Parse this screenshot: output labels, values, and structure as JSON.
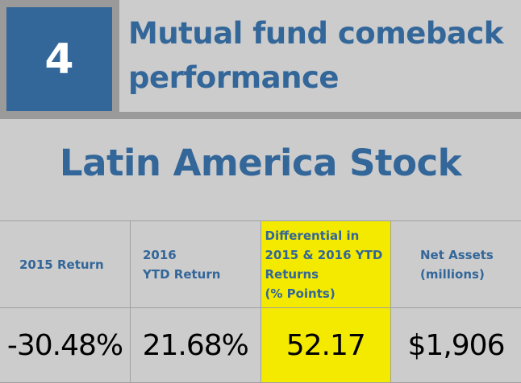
{
  "header": {
    "number": "4",
    "title_line1": "Mutual fund comeback",
    "title_line2": "performance"
  },
  "subtitle": "Latin America Stock",
  "table": {
    "headers": [
      {
        "lines": [
          "2015 Return"
        ]
      },
      {
        "lines": [
          "2016",
          "YTD Return"
        ]
      },
      {
        "lines": [
          "Differential in",
          "2015 & 2016 YTD",
          "Returns",
          "(% Points)"
        ]
      },
      {
        "lines": [
          "Net Assets",
          "(millions)"
        ]
      }
    ],
    "values": [
      "-30.48%",
      "21.68%",
      "52.17",
      "$1,906"
    ]
  },
  "colors": {
    "blue": "#336699",
    "highlight": "#f4ea00",
    "background": "#cccccc"
  }
}
